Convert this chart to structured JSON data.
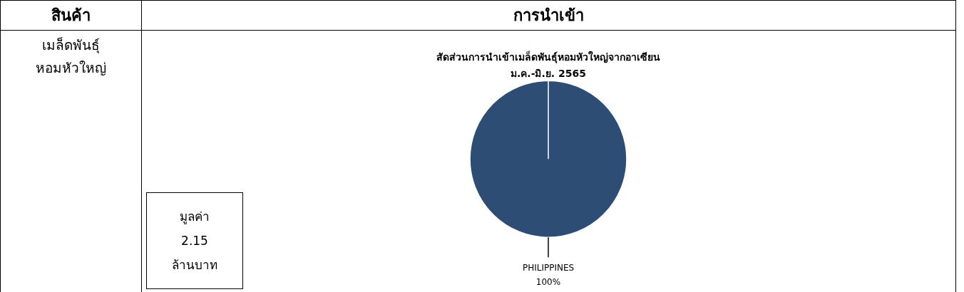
{
  "chart_data": {
    "type": "pie",
    "title": "สัดส่วนการนำเข้าเมล็ดพันธุ์หอมหัวใหญ่จากอาเซียน",
    "subtitle": "ม.ค.-มิ.ย. 2565",
    "categories": [
      "PHILIPPINES"
    ],
    "values": [
      100
    ],
    "colors": [
      "#2e4d74"
    ],
    "value_labels": [
      "100%"
    ],
    "annotations": [
      "สินค้า",
      "การนำเข้า",
      "เมล็ดพันธุ์\nหอมหัวใหญ่",
      "มูลค่า\n2.15\nล้านบาท"
    ]
  }
}
